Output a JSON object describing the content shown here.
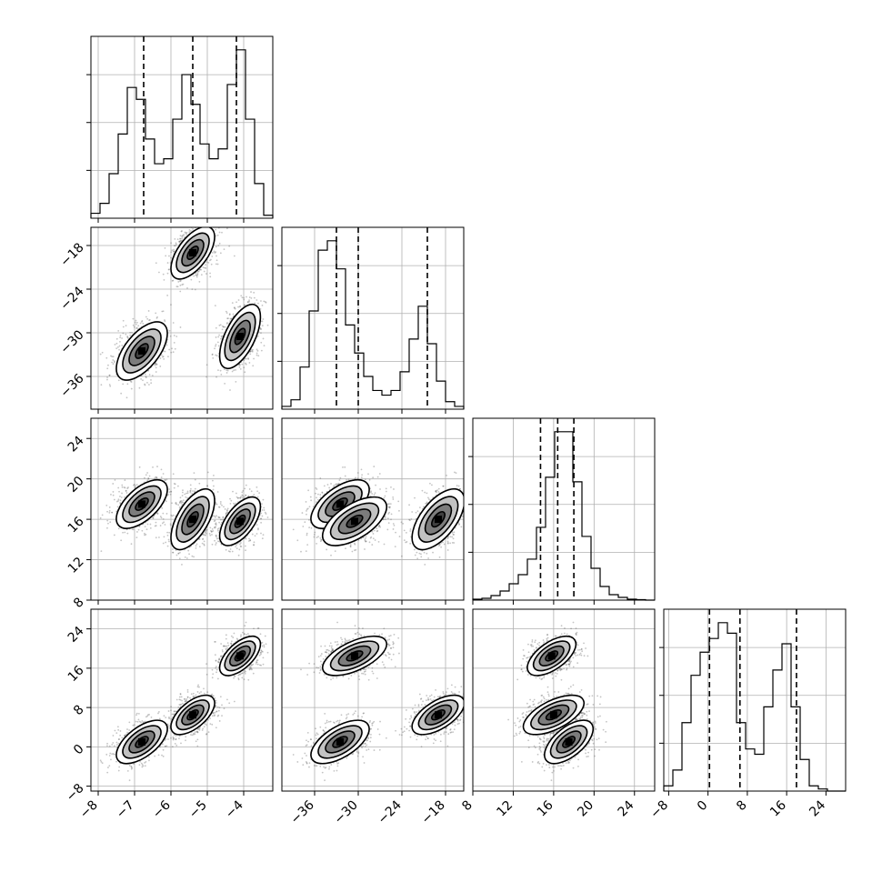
{
  "chart_data": {
    "type": "corner",
    "variables": 4,
    "grid": true,
    "ranges": [
      [
        -8.2,
        -3.2
      ],
      [
        -40.5,
        -15.5
      ],
      [
        8,
        26
      ],
      [
        -9,
        28
      ]
    ],
    "ticks": [
      [
        {
          "v": -8,
          "label": "−8"
        },
        {
          "v": -7,
          "label": "−7"
        },
        {
          "v": -6,
          "label": "−6"
        },
        {
          "v": -5,
          "label": "−5"
        },
        {
          "v": -4,
          "label": "−4"
        }
      ],
      [
        {
          "v": -36,
          "label": "−36"
        },
        {
          "v": -30,
          "label": "−30"
        },
        {
          "v": -24,
          "label": "−24"
        },
        {
          "v": -18,
          "label": "−18"
        }
      ],
      [
        {
          "v": 8,
          "label": "8"
        },
        {
          "v": 12,
          "label": "12"
        },
        {
          "v": 16,
          "label": "16"
        },
        {
          "v": 20,
          "label": "20"
        },
        {
          "v": 24,
          "label": "24"
        }
      ],
      [
        {
          "v": -8,
          "label": "−8"
        },
        {
          "v": 0,
          "label": "0"
        },
        {
          "v": 8,
          "label": "8"
        },
        {
          "v": 16,
          "label": "16"
        },
        {
          "v": 24,
          "label": "24"
        }
      ]
    ],
    "components": [
      {
        "mean": [
          -6.8,
          -32.5,
          17.5,
          1.0
        ],
        "sd": [
          0.35,
          2.0,
          1.2,
          2.2
        ],
        "rho": 0.6,
        "weight": 0.34
      },
      {
        "mean": [
          -5.4,
          -19.0,
          16.0,
          6.5
        ],
        "sd": [
          0.3,
          1.8,
          1.5,
          2.0
        ],
        "rho": 0.6,
        "weight": 0.33
      },
      {
        "mean": [
          -4.1,
          -30.5,
          15.8,
          18.5
        ],
        "sd": [
          0.28,
          2.2,
          1.2,
          2.0
        ],
        "rho": 0.6,
        "weight": 0.33
      }
    ],
    "histograms": [
      {
        "edges_range": [
          -8.2,
          -3.2
        ],
        "bins": 20,
        "counts": [
          0.5,
          1.5,
          4.5,
          8.5,
          13.2,
          12.0,
          8.0,
          5.5,
          6.0,
          10.0,
          14.5,
          11.5,
          7.5,
          6.0,
          7.0,
          13.5,
          17.0,
          10.0,
          3.5,
          0.3
        ],
        "quantiles": [
          -6.75,
          -5.4,
          -4.2
        ]
      },
      {
        "edges_range": [
          -40.5,
          -15.5
        ],
        "bins": 20,
        "counts": [
          0.3,
          1.0,
          4.5,
          10.5,
          17.0,
          18.0,
          15.0,
          9.0,
          6.0,
          3.5,
          2.0,
          1.5,
          2.0,
          4.0,
          7.5,
          11.0,
          7.0,
          3.0,
          0.8,
          0.3
        ],
        "quantiles": [
          -33.0,
          -30.0,
          -20.5
        ]
      },
      {
        "edges_range": [
          8,
          26
        ],
        "bins": 20,
        "counts": [
          0.1,
          0.2,
          0.5,
          1.0,
          1.8,
          2.8,
          4.5,
          8.0,
          13.5,
          18.5,
          18.5,
          13.0,
          7.0,
          3.5,
          1.5,
          0.6,
          0.3,
          0.1,
          0.05,
          0.0
        ],
        "quantiles": [
          14.7,
          16.4,
          18.0
        ]
      },
      {
        "edges_range": [
          -9,
          28
        ],
        "bins": 20,
        "counts": [
          0.5,
          2.0,
          6.5,
          11.0,
          13.2,
          14.5,
          16.0,
          15.0,
          6.5,
          4.0,
          3.5,
          8.0,
          11.5,
          14.0,
          8.0,
          3.0,
          0.5,
          0.2,
          0.0,
          0.0
        ],
        "quantiles": [
          0.3,
          6.5,
          18.0
        ]
      }
    ]
  }
}
